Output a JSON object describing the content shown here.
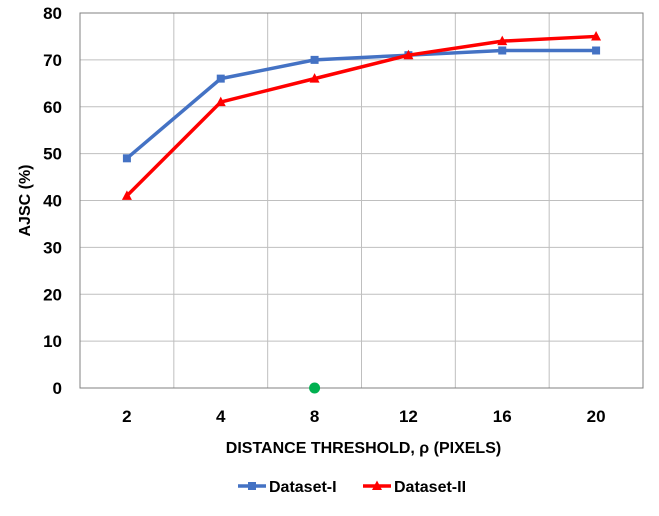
{
  "chart_data": {
    "type": "line",
    "title": "",
    "xlabel": "DISTANCE THRESHOLD,  ρ (PIXELS)",
    "ylabel": "AJSC  (%)",
    "categories": [
      "2",
      "4",
      "8",
      "12",
      "16",
      "20"
    ],
    "ylim": [
      0,
      80
    ],
    "yticks": [
      0,
      10,
      20,
      30,
      40,
      50,
      60,
      70,
      80
    ],
    "grid": true,
    "legend_position": "bottom",
    "series": [
      {
        "name": "Dataset-I",
        "values": [
          49,
          66,
          70,
          71,
          72,
          72
        ],
        "color": "#4472C4",
        "marker": "square"
      },
      {
        "name": "Dataset-II",
        "values": [
          41,
          61,
          66,
          71,
          74,
          75
        ],
        "color": "#FF0000",
        "marker": "triangle"
      }
    ],
    "annotations": [
      {
        "type": "dot",
        "category": "8",
        "value": 0,
        "color": "#00B050"
      }
    ]
  }
}
